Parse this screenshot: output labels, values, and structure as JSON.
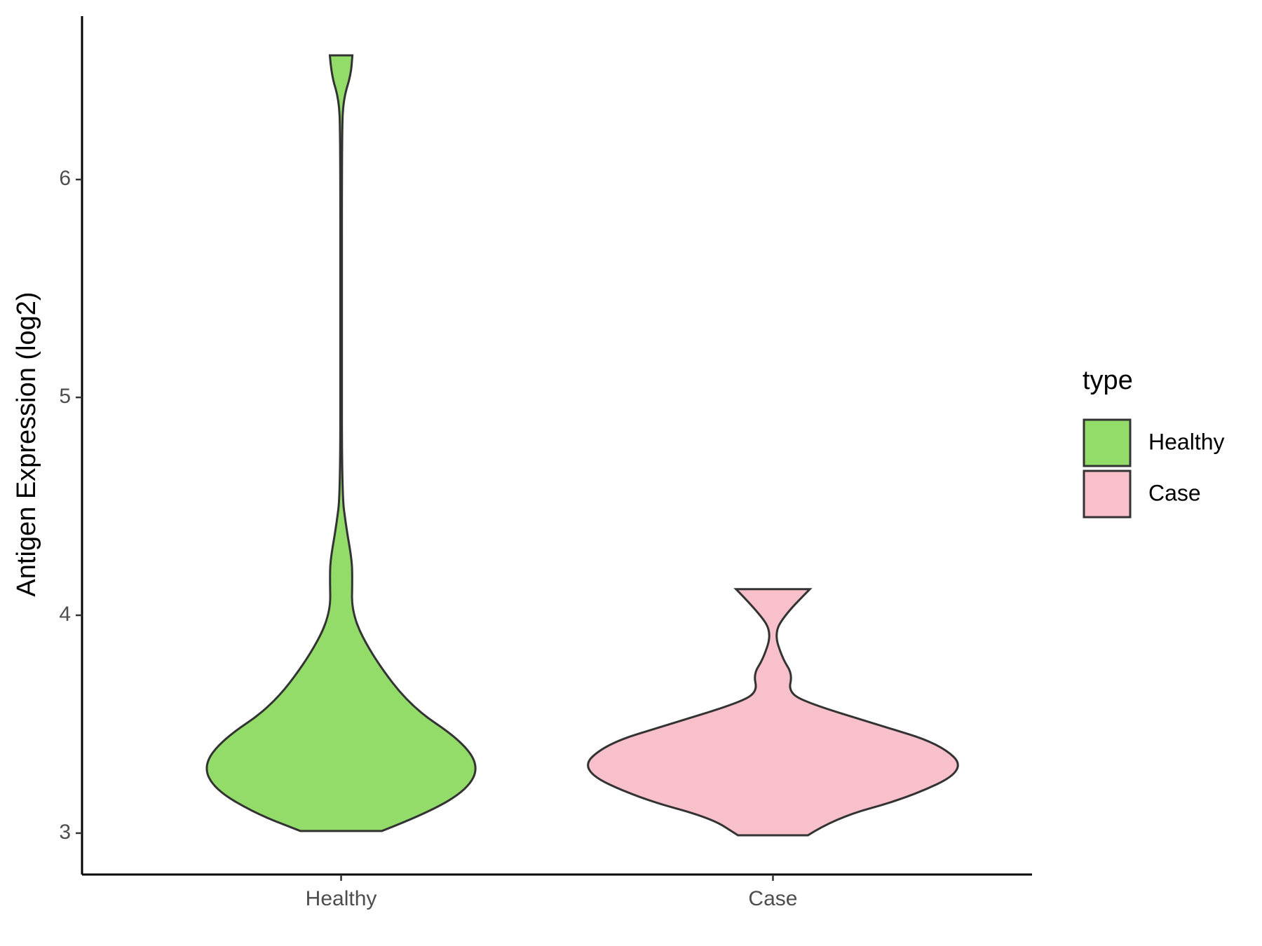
{
  "chart_data": {
    "type": "violin",
    "y_label": "Antigen Expression (log2)",
    "categories": [
      "Healthy",
      "Case"
    ],
    "ylim": [
      2.81,
      6.75
    ],
    "yticks": [
      3,
      4,
      5,
      6
    ],
    "legend_title": "type",
    "series": [
      {
        "name": "Healthy",
        "color": "#93dc6a",
        "y": [
          3.01,
          3.09,
          3.2,
          3.31,
          3.43,
          3.58,
          3.8,
          4.0,
          4.18,
          4.26,
          4.41,
          4.56,
          5.31,
          6.22,
          6.37,
          6.48,
          6.57
        ],
        "width": [
          0.21,
          0.44,
          0.65,
          0.71,
          0.61,
          0.36,
          0.17,
          0.054,
          0.058,
          0.054,
          0.025,
          0.004,
          0.004,
          0.004,
          0.012,
          0.05,
          0.058
        ]
      },
      {
        "name": "Case",
        "color": "#f8c0cb",
        "y": [
          2.99,
          3.07,
          3.16,
          3.29,
          3.41,
          3.5,
          3.6,
          3.65,
          3.73,
          3.8,
          3.92,
          4.01,
          4.12
        ],
        "width": [
          0.18,
          0.32,
          0.69,
          1.0,
          0.86,
          0.53,
          0.17,
          0.08,
          0.1,
          0.05,
          0.006,
          0.07,
          0.19
        ]
      }
    ]
  }
}
